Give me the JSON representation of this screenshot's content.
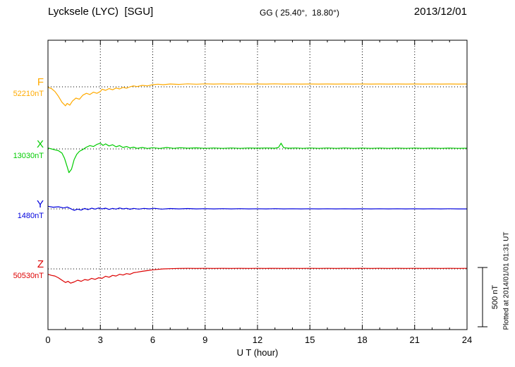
{
  "header": {
    "title": "Lycksele (LYC)  [SGU]",
    "coords": "GG ( 25.40°,  18.80°)",
    "date": "2013/12/01"
  },
  "footer_note": "Plotted at 2014/01/01 01:31 UT",
  "chart_data": {
    "type": "line",
    "title": "Lycksele (LYC)  [SGU]",
    "subtitle": "GG ( 25.40°,  18.80°)",
    "date": "2013/12/01",
    "xlabel": "U T (hour)",
    "ylabel": "",
    "units": "nT",
    "xlim": [
      0,
      24
    ],
    "xticks": [
      0,
      3,
      6,
      9,
      12,
      15,
      18,
      21,
      24
    ],
    "grid": {
      "vertical_dotted_at": [
        3,
        6,
        9,
        12,
        15,
        18,
        21
      ],
      "horizontal_dotted_baselines": true
    },
    "scale_bar": {
      "label": "500 nT",
      "nT": 500
    },
    "series": [
      {
        "name": "F",
        "color": "#FFAA00",
        "baseline_label": "52210nT",
        "baseline_nT": 52210,
        "points": [
          [
            0,
            -5
          ],
          [
            0.2,
            -15
          ],
          [
            0.4,
            -40
          ],
          [
            0.6,
            -80
          ],
          [
            0.8,
            -130
          ],
          [
            1.0,
            -160
          ],
          [
            1.1,
            -140
          ],
          [
            1.25,
            -155
          ],
          [
            1.4,
            -120
          ],
          [
            1.6,
            -95
          ],
          [
            1.8,
            -105
          ],
          [
            2.0,
            -70
          ],
          [
            2.2,
            -55
          ],
          [
            2.4,
            -65
          ],
          [
            2.6,
            -45
          ],
          [
            2.8,
            -55
          ],
          [
            3.0,
            -40
          ],
          [
            3.1,
            -20
          ],
          [
            3.3,
            -30
          ],
          [
            3.5,
            -15
          ],
          [
            3.7,
            -25
          ],
          [
            3.9,
            -10
          ],
          [
            4.1,
            -18
          ],
          [
            4.3,
            -5
          ],
          [
            4.5,
            -12
          ],
          [
            4.7,
            0
          ],
          [
            4.9,
            8
          ],
          [
            5.1,
            2
          ],
          [
            5.4,
            12
          ],
          [
            5.7,
            8
          ],
          [
            6.0,
            18
          ],
          [
            6.3,
            22
          ],
          [
            6.6,
            18
          ],
          [
            7.0,
            24
          ],
          [
            7.5,
            20
          ],
          [
            8.0,
            25
          ],
          [
            8.5,
            22
          ],
          [
            9.0,
            25
          ],
          [
            9.5,
            23
          ],
          [
            10,
            25
          ],
          [
            10.5,
            23
          ],
          [
            11,
            25
          ],
          [
            11.5,
            23
          ],
          [
            12,
            24
          ],
          [
            12.5,
            23
          ],
          [
            13,
            25
          ],
          [
            13.5,
            23
          ],
          [
            14,
            24
          ],
          [
            14.5,
            23
          ],
          [
            15,
            24
          ],
          [
            15.5,
            23
          ],
          [
            16,
            24
          ],
          [
            16.5,
            23
          ],
          [
            17,
            24
          ],
          [
            17.5,
            23
          ],
          [
            18,
            24
          ],
          [
            18.5,
            23
          ],
          [
            19,
            24
          ],
          [
            19.5,
            23
          ],
          [
            20,
            24
          ],
          [
            20.5,
            23
          ],
          [
            21,
            24
          ],
          [
            21.5,
            23
          ],
          [
            22,
            24
          ],
          [
            22.5,
            23
          ],
          [
            23,
            24
          ],
          [
            23.5,
            23
          ],
          [
            24,
            24
          ]
        ]
      },
      {
        "name": "X",
        "color": "#00CC00",
        "baseline_label": "13030nT",
        "baseline_nT": 13030,
        "points": [
          [
            0,
            8
          ],
          [
            0.2,
            0
          ],
          [
            0.4,
            -8
          ],
          [
            0.6,
            -15
          ],
          [
            0.8,
            -35
          ],
          [
            0.95,
            -80
          ],
          [
            1.1,
            -150
          ],
          [
            1.2,
            -200
          ],
          [
            1.35,
            -170
          ],
          [
            1.5,
            -90
          ],
          [
            1.65,
            -45
          ],
          [
            1.8,
            -20
          ],
          [
            2.0,
            -5
          ],
          [
            2.2,
            15
          ],
          [
            2.4,
            28
          ],
          [
            2.6,
            20
          ],
          [
            2.8,
            38
          ],
          [
            3.0,
            48
          ],
          [
            3.15,
            30
          ],
          [
            3.3,
            42
          ],
          [
            3.5,
            25
          ],
          [
            3.7,
            35
          ],
          [
            3.9,
            18
          ],
          [
            4.1,
            28
          ],
          [
            4.3,
            12
          ],
          [
            4.5,
            20
          ],
          [
            4.7,
            8
          ],
          [
            4.9,
            15
          ],
          [
            5.1,
            5
          ],
          [
            5.4,
            12
          ],
          [
            5.7,
            4
          ],
          [
            6.0,
            10
          ],
          [
            6.4,
            4
          ],
          [
            6.8,
            12
          ],
          [
            7.2,
            5
          ],
          [
            7.6,
            10
          ],
          [
            8.0,
            6
          ],
          [
            8.5,
            9
          ],
          [
            9.0,
            5
          ],
          [
            9.5,
            8
          ],
          [
            10,
            5
          ],
          [
            10.5,
            8
          ],
          [
            11,
            5
          ],
          [
            11.5,
            8
          ],
          [
            12,
            6
          ],
          [
            12.5,
            8
          ],
          [
            13,
            6
          ],
          [
            13.2,
            12
          ],
          [
            13.35,
            48
          ],
          [
            13.5,
            10
          ],
          [
            13.8,
            6
          ],
          [
            14.2,
            8
          ],
          [
            14.6,
            5
          ],
          [
            15,
            8
          ],
          [
            15.5,
            5
          ],
          [
            16,
            8
          ],
          [
            16.5,
            5
          ],
          [
            17,
            8
          ],
          [
            17.5,
            5
          ],
          [
            18,
            7
          ],
          [
            18.5,
            5
          ],
          [
            19,
            7
          ],
          [
            19.5,
            5
          ],
          [
            20,
            7
          ],
          [
            20.5,
            5
          ],
          [
            21,
            7
          ],
          [
            21.5,
            5
          ],
          [
            22,
            7
          ],
          [
            22.5,
            5
          ],
          [
            23,
            7
          ],
          [
            23.5,
            5
          ],
          [
            24,
            6
          ]
        ]
      },
      {
        "name": "Y",
        "color": "#0000DD",
        "baseline_label": "1480nT",
        "baseline_nT": 1480,
        "points": [
          [
            0,
            22
          ],
          [
            0.3,
            14
          ],
          [
            0.6,
            18
          ],
          [
            0.9,
            8
          ],
          [
            1.1,
            16
          ],
          [
            1.3,
            2
          ],
          [
            1.5,
            -12
          ],
          [
            1.7,
            -2
          ],
          [
            1.9,
            -10
          ],
          [
            2.1,
            4
          ],
          [
            2.3,
            -6
          ],
          [
            2.5,
            6
          ],
          [
            2.7,
            -2
          ],
          [
            2.9,
            8
          ],
          [
            3.1,
            0
          ],
          [
            3.3,
            6
          ],
          [
            3.5,
            -4
          ],
          [
            3.7,
            4
          ],
          [
            3.9,
            -2
          ],
          [
            4.1,
            8
          ],
          [
            4.3,
            0
          ],
          [
            4.5,
            5
          ],
          [
            4.7,
            -3
          ],
          [
            4.9,
            4
          ],
          [
            5.2,
            -2
          ],
          [
            5.5,
            4
          ],
          [
            5.8,
            0
          ],
          [
            6.1,
            5
          ],
          [
            6.5,
            -2
          ],
          [
            7,
            3
          ],
          [
            7.5,
            0
          ],
          [
            8,
            3
          ],
          [
            8.5,
            0
          ],
          [
            9,
            2
          ],
          [
            9.5,
            0
          ],
          [
            10,
            2
          ],
          [
            10.5,
            0
          ],
          [
            11,
            2
          ],
          [
            11.5,
            0
          ],
          [
            12,
            1
          ],
          [
            12.5,
            0
          ],
          [
            13,
            2
          ],
          [
            13.5,
            0
          ],
          [
            14,
            1
          ],
          [
            14.5,
            0
          ],
          [
            15,
            1
          ],
          [
            15.5,
            0
          ],
          [
            16,
            1
          ],
          [
            16.5,
            0
          ],
          [
            17,
            1
          ],
          [
            17.5,
            0
          ],
          [
            18,
            1
          ],
          [
            18.5,
            0
          ],
          [
            19,
            1
          ],
          [
            19.5,
            0
          ],
          [
            20,
            1
          ],
          [
            20.5,
            0
          ],
          [
            21,
            1
          ],
          [
            21.5,
            0
          ],
          [
            22,
            1
          ],
          [
            22.5,
            0
          ],
          [
            23,
            1
          ],
          [
            23.5,
            0
          ],
          [
            24,
            0
          ]
        ]
      },
      {
        "name": "Z",
        "color": "#DD0000",
        "baseline_label": "50530nT",
        "baseline_nT": 50530,
        "points": [
          [
            0,
            -45
          ],
          [
            0.2,
            -55
          ],
          [
            0.4,
            -60
          ],
          [
            0.6,
            -75
          ],
          [
            0.8,
            -95
          ],
          [
            1.0,
            -115
          ],
          [
            1.15,
            -105
          ],
          [
            1.3,
            -120
          ],
          [
            1.5,
            -110
          ],
          [
            1.7,
            -95
          ],
          [
            1.9,
            -105
          ],
          [
            2.1,
            -90
          ],
          [
            2.3,
            -95
          ],
          [
            2.5,
            -80
          ],
          [
            2.7,
            -88
          ],
          [
            2.9,
            -75
          ],
          [
            3.1,
            -80
          ],
          [
            3.3,
            -62
          ],
          [
            3.5,
            -70
          ],
          [
            3.7,
            -55
          ],
          [
            3.9,
            -60
          ],
          [
            4.1,
            -45
          ],
          [
            4.3,
            -52
          ],
          [
            4.5,
            -40
          ],
          [
            4.7,
            -45
          ],
          [
            4.9,
            -32
          ],
          [
            5.1,
            -28
          ],
          [
            5.4,
            -20
          ],
          [
            5.7,
            -14
          ],
          [
            6.0,
            -8
          ],
          [
            6.3,
            -4
          ],
          [
            6.6,
            0
          ],
          [
            7,
            2
          ],
          [
            7.5,
            4
          ],
          [
            8,
            5
          ],
          [
            8.5,
            4
          ],
          [
            9,
            5
          ],
          [
            9.5,
            4
          ],
          [
            10,
            5
          ],
          [
            10.5,
            4
          ],
          [
            11,
            5
          ],
          [
            11.5,
            4
          ],
          [
            12,
            5
          ],
          [
            12.5,
            4
          ],
          [
            13,
            5
          ],
          [
            13.5,
            4
          ],
          [
            14,
            5
          ],
          [
            14.5,
            4
          ],
          [
            15,
            5
          ],
          [
            15.5,
            4
          ],
          [
            16,
            5
          ],
          [
            16.5,
            4
          ],
          [
            17,
            5
          ],
          [
            17.5,
            4
          ],
          [
            18,
            5
          ],
          [
            18.5,
            4
          ],
          [
            19,
            5
          ],
          [
            19.5,
            4
          ],
          [
            20,
            5
          ],
          [
            20.5,
            4
          ],
          [
            21,
            5
          ],
          [
            21.5,
            4
          ],
          [
            22,
            5
          ],
          [
            22.5,
            4
          ],
          [
            23,
            5
          ],
          [
            23.5,
            4
          ],
          [
            24,
            5
          ]
        ]
      }
    ]
  }
}
